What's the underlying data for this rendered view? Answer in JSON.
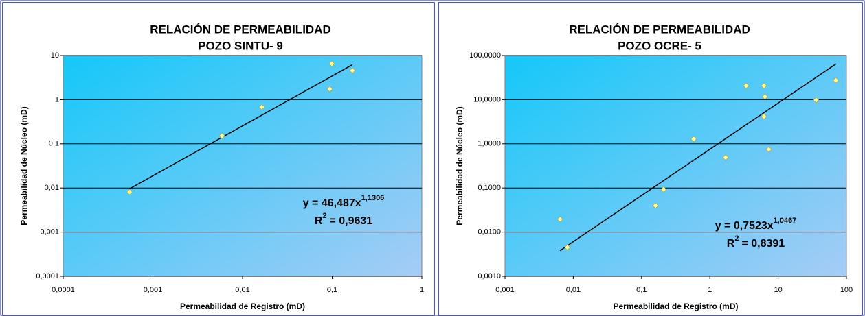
{
  "chart_data": [
    {
      "type": "scatter",
      "title": "RELACIÓN DE PERMEABILIDAD",
      "subtitle": "POZO SINTU- 9",
      "x_label": "Permeabilidad de Registro (mD)",
      "y_label": "Permeabilidad de Núcleo (mD)",
      "x": [
        0.00055,
        0.0059,
        0.0164,
        0.094,
        0.099,
        0.168
      ],
      "values": [
        0.0081,
        0.152,
        0.68,
        1.74,
        6.5,
        4.55
      ],
      "color": "#ffff99",
      "log_x": true,
      "log_y": true,
      "grid": true,
      "xlim": [
        0.0001,
        1
      ],
      "xticks": [
        {
          "value": 0.0001,
          "label": "0,0001"
        },
        {
          "value": 0.001,
          "label": "0,001"
        },
        {
          "value": 0.01,
          "label": "0,01"
        },
        {
          "value": 0.1,
          "label": "0,1"
        },
        1
      ],
      "ylim": [
        0.0001,
        10
      ],
      "yticks": [
        {
          "value": 0.0001,
          "label": "0,0001"
        },
        {
          "value": 0.001,
          "label": "0,001"
        },
        {
          "value": 0.01,
          "label": "0,01"
        },
        {
          "value": 0.1,
          "label": "0,1"
        },
        1,
        10
      ],
      "trendline": {
        "coefficient": 46.487,
        "exponent": 1.1306
      },
      "equation": {
        "base": "y = 46,487x",
        "exponent": "1,1306"
      },
      "r_squared": {
        "base": "R",
        "exponent": "2",
        "value": "= 0,9631"
      }
    },
    {
      "type": "scatter",
      "title": "RELACIÓN DE PERMEABILIDAD",
      "subtitle": "POZO OCRE- 5",
      "x_label": "Permeabilidad de Registro (mD)",
      "y_label": "Permeabilidad de Núcleo (mD)",
      "x": [
        0.0064,
        0.0082,
        0.16,
        0.21,
        0.58,
        1.7,
        3.4,
        6.2,
        6.4,
        6.2,
        7.3,
        36,
        70
      ],
      "values": [
        0.0195,
        0.0045,
        0.04,
        0.093,
        1.28,
        0.49,
        20.7,
        20.7,
        11.7,
        4.15,
        0.75,
        9.8,
        27.5
      ],
      "color": "#ffff99",
      "log_x": true,
      "log_y": true,
      "grid": true,
      "xlim": [
        0.001,
        100
      ],
      "xticks": [
        {
          "value": 0.001,
          "label": "0,001"
        },
        {
          "value": 0.01,
          "label": "0,01"
        },
        {
          "value": 0.1,
          "label": "0,1"
        },
        1,
        10,
        100
      ],
      "ylim": [
        0.001,
        100
      ],
      "yticks": [
        {
          "value": 0.001,
          "label": "0,0010"
        },
        {
          "value": 0.01,
          "label": "0,0100"
        },
        {
          "value": 0.1,
          "label": "0,1000"
        },
        {
          "value": 1,
          "label": "1,0000"
        },
        {
          "value": 10,
          "label": "10,0000"
        },
        {
          "value": 100,
          "label": "100,0000"
        }
      ],
      "trendline": {
        "coefficient": 0.7523,
        "exponent": 1.0467
      },
      "equation": {
        "base": "y = 0,7523x",
        "exponent": "1,0467"
      },
      "r_squared": {
        "base": "R",
        "exponent": "2",
        "value": "= 0,8391"
      }
    }
  ]
}
